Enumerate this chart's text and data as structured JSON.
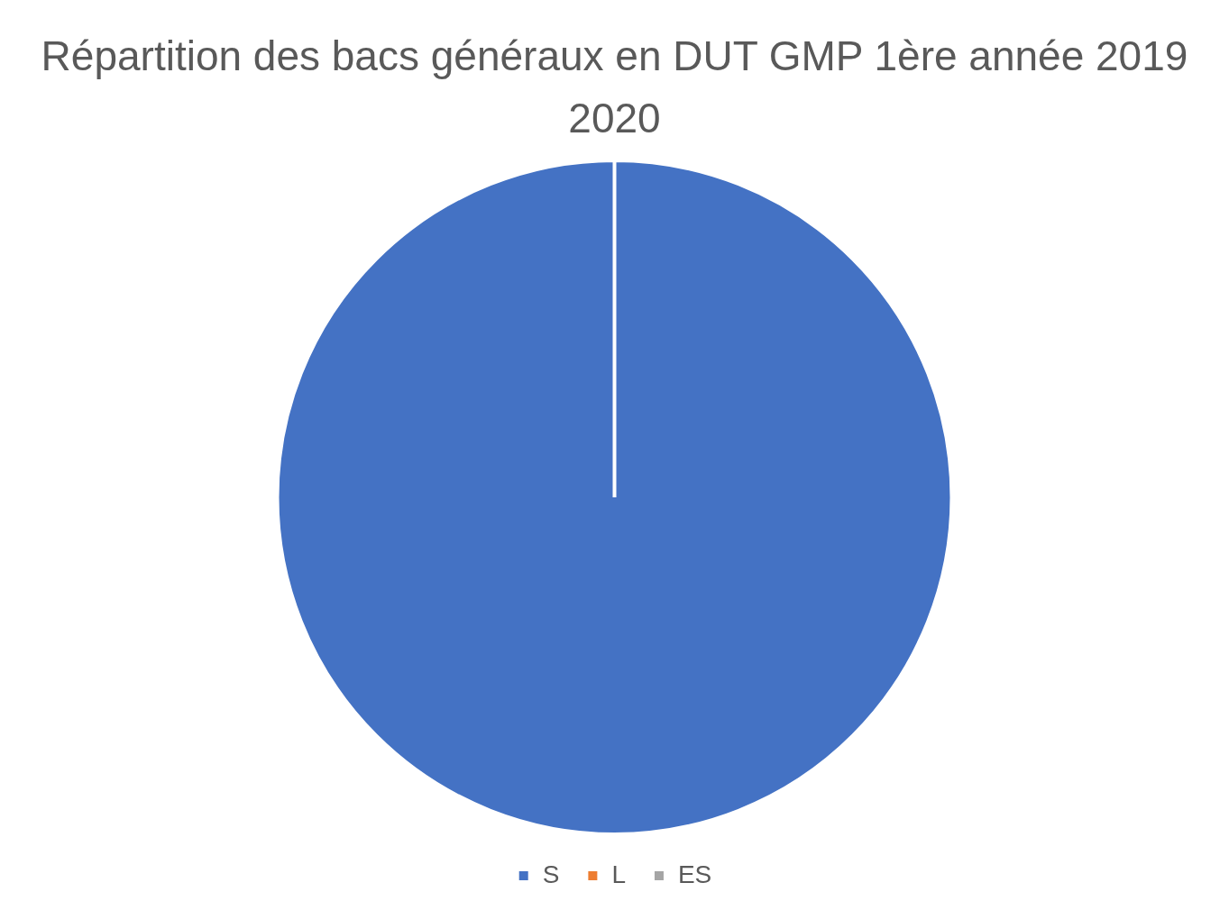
{
  "chart_data": {
    "type": "pie",
    "title": "Répartition des bacs généraux en DUT GMP 1ère année 2019 2020",
    "categories": [
      "S",
      "L",
      "ES"
    ],
    "values": [
      100,
      0,
      0
    ],
    "colors": [
      "#4472c4",
      "#ed7d31",
      "#a5a5a5"
    ],
    "legend": "bottom"
  }
}
